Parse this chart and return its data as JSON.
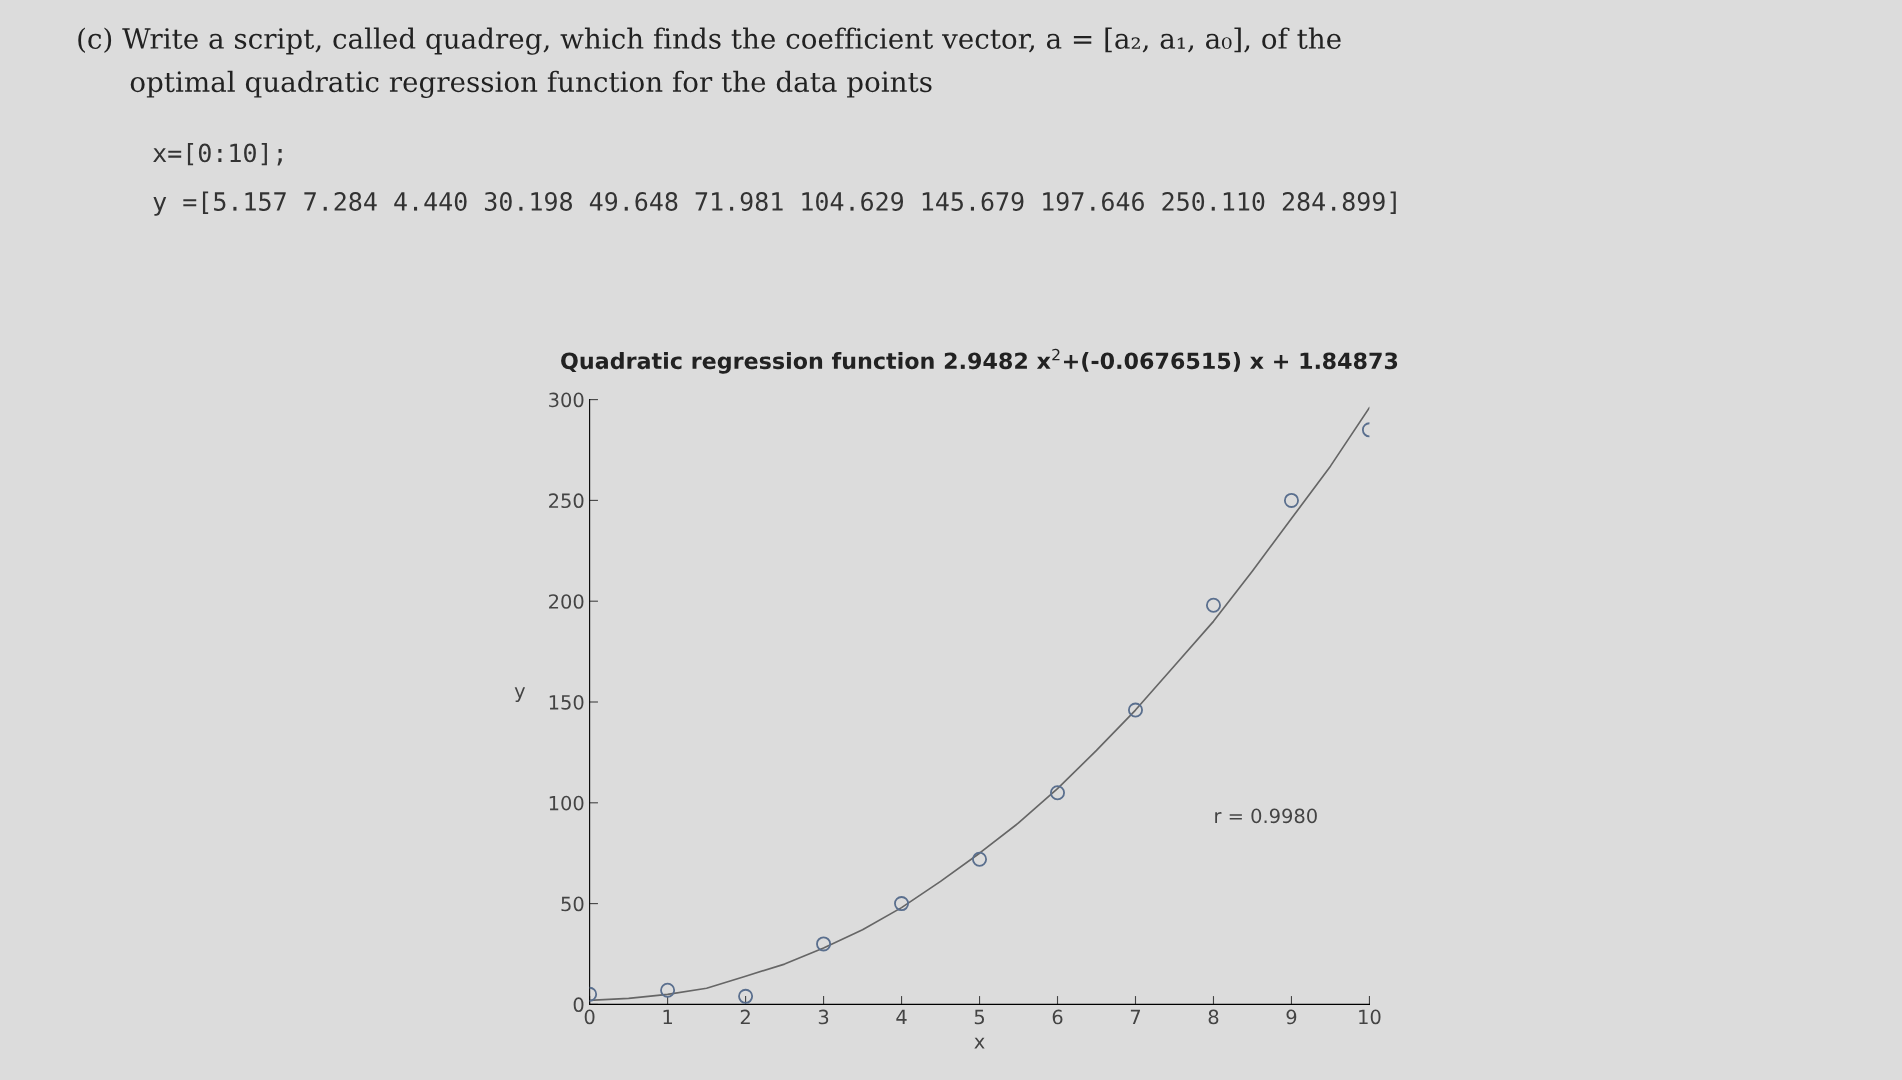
{
  "chart_data": {
    "type": "scatter",
    "title": "Quadratic regression function 2.9482 x$^{2}$+(-0.0676515) x + 1.84873",
    "xlabel": "x",
    "ylabel": "y",
    "annotations": [
      "(c) Write a script, called quadreg, which finds the coefficient vector, a = [a₂, a₁, a₀], of the",
      "optimal quadratic regression function for the data points",
      "x=[0:10];",
      "y =[5.157 7.284 4.440 30.198 49.648 71.981 104.629 145.679 197.646 250.110 284.899]",
      "r = 0.9980"
    ],
    "x": [
      0,
      1,
      2,
      3,
      4,
      5,
      6,
      7,
      8,
      9,
      10
    ],
    "series": [
      {
        "color": "#5a6f8e",
        "marker": "circle",
        "values": [
          5,
          7,
          4,
          30,
          50,
          72,
          105,
          146,
          198,
          250,
          285
        ]
      },
      {
        "type": "line",
        "color": "#666666",
        "marker": "none",
        "line_style": "solid",
        "x": [
          0,
          0.5,
          1,
          1.5,
          2,
          2.5,
          3,
          3.5,
          4,
          4.5,
          5,
          5.5,
          6,
          6.5,
          7,
          7.5,
          8,
          8.5,
          9,
          9.5,
          10
        ],
        "values": [
          2,
          3,
          5,
          8,
          14,
          20,
          28,
          37,
          48,
          61,
          75,
          90,
          107,
          126,
          146,
          168,
          190,
          215,
          241,
          267,
          296
        ]
      }
    ],
    "xlim": [
      0,
      10
    ],
    "xticks": [
      0,
      1,
      2,
      3,
      4,
      5,
      6,
      7,
      8,
      9,
      10
    ],
    "ylim": [
      0,
      300
    ],
    "yticks": [
      0,
      50,
      100,
      150,
      200,
      250,
      300
    ],
    "grid": false,
    "legend": false
  }
}
